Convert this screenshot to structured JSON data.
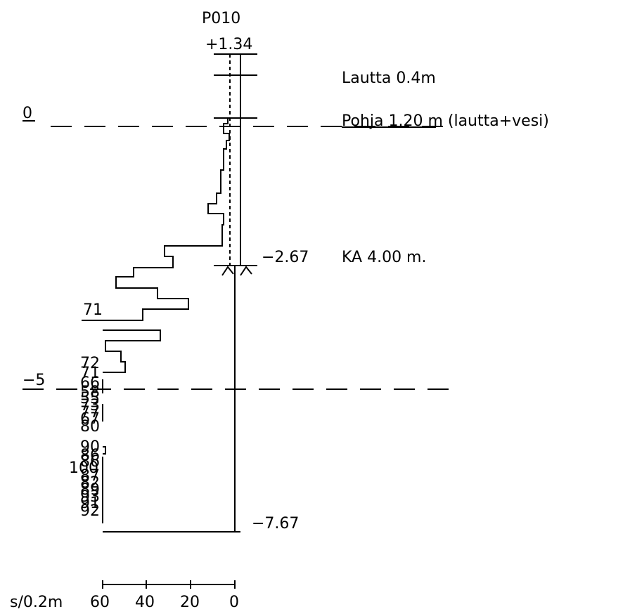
{
  "title": "P010",
  "top_level": "+1.34",
  "raft_label": "Lautta 0.4m",
  "bottom_label": "Pohja 1.20 m (lautta+vesi)",
  "zero_label": "0",
  "minus5_label": "−5",
  "ka_level": "−2.67",
  "ka_label": "KA 4.00 m.",
  "end_level": "−7.67",
  "scale": {
    "unit_label": "s/0.2m",
    "ticks": [
      "60",
      "40",
      "20",
      "0"
    ]
  },
  "blow_labels": [
    "71",
    "72",
    "71",
    "66",
    "58",
    "55",
    "73",
    "77",
    "67",
    "80",
    "90",
    "86",
    "86",
    "100",
    "87",
    "82",
    "89",
    "93",
    "91",
    "92"
  ],
  "diagram_data": {
    "type": "penetration-profile",
    "blow_profile_scale_s_per_0_2m": [
      60,
      40,
      20,
      0
    ],
    "levels": {
      "top": 1.34,
      "seabed": 0,
      "ka": -2.67,
      "end": -7.67,
      "reference": -5
    }
  }
}
